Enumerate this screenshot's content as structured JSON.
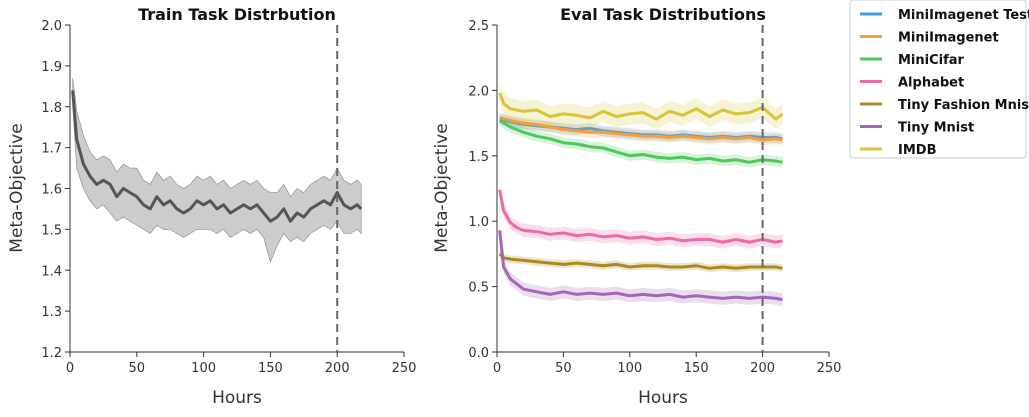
{
  "colors": {
    "train": "#555555",
    "minimagenet_test": "#4a9bd9",
    "minimagenet": "#f0a040",
    "minicifar": "#4fc85a",
    "alphabet": "#ee6aa7",
    "tiny_fashion_mnist": "#a88a1e",
    "tiny_mnist": "#a366b8",
    "imdb": "#d8c43a"
  },
  "chart_data": [
    {
      "type": "line",
      "title": "Train Task Distrbution",
      "xlabel": "Hours",
      "ylabel": "Meta-Objective",
      "xlim": [
        0,
        250
      ],
      "ylim": [
        1.2,
        2.0
      ],
      "xticks": [
        "0",
        "50",
        "100",
        "150",
        "200",
        "250"
      ],
      "yticks": [
        "1.2",
        "1.3",
        "1.4",
        "1.5",
        "1.6",
        "1.7",
        "1.8",
        "1.9",
        "2.0"
      ],
      "vline_x": 200,
      "grid": false,
      "series": [
        {
          "color_key": "train",
          "x": [
            2,
            5,
            10,
            15,
            20,
            25,
            30,
            35,
            40,
            45,
            50,
            55,
            60,
            65,
            70,
            75,
            80,
            85,
            90,
            95,
            100,
            105,
            110,
            115,
            120,
            125,
            130,
            135,
            140,
            145,
            150,
            155,
            160,
            165,
            170,
            175,
            180,
            185,
            190,
            195,
            200,
            205,
            210,
            215,
            218
          ],
          "y": [
            1.84,
            1.72,
            1.66,
            1.63,
            1.61,
            1.62,
            1.61,
            1.58,
            1.6,
            1.59,
            1.58,
            1.56,
            1.55,
            1.58,
            1.56,
            1.57,
            1.55,
            1.54,
            1.55,
            1.57,
            1.56,
            1.57,
            1.55,
            1.56,
            1.54,
            1.55,
            1.56,
            1.55,
            1.56,
            1.54,
            1.52,
            1.53,
            1.55,
            1.52,
            1.54,
            1.53,
            1.55,
            1.56,
            1.57,
            1.56,
            1.59,
            1.56,
            1.55,
            1.56,
            1.55
          ],
          "lower": [
            1.8,
            1.65,
            1.6,
            1.57,
            1.55,
            1.56,
            1.54,
            1.52,
            1.53,
            1.52,
            1.51,
            1.5,
            1.49,
            1.51,
            1.5,
            1.5,
            1.49,
            1.48,
            1.49,
            1.5,
            1.5,
            1.5,
            1.49,
            1.5,
            1.48,
            1.49,
            1.5,
            1.49,
            1.5,
            1.48,
            1.42,
            1.46,
            1.49,
            1.47,
            1.48,
            1.47,
            1.49,
            1.5,
            1.51,
            1.5,
            1.52,
            1.49,
            1.49,
            1.5,
            1.49
          ]
        }
      ],
      "band_upper": [
        1.87,
        1.79,
        1.73,
        1.69,
        1.67,
        1.68,
        1.67,
        1.64,
        1.66,
        1.65,
        1.65,
        1.62,
        1.61,
        1.64,
        1.62,
        1.63,
        1.61,
        1.6,
        1.61,
        1.63,
        1.62,
        1.63,
        1.61,
        1.62,
        1.6,
        1.61,
        1.62,
        1.61,
        1.62,
        1.6,
        1.59,
        1.59,
        1.61,
        1.58,
        1.6,
        1.59,
        1.61,
        1.62,
        1.63,
        1.62,
        1.65,
        1.62,
        1.61,
        1.62,
        1.61
      ]
    },
    {
      "type": "line",
      "title": "Eval Task Distributions",
      "xlabel": "Hours",
      "ylabel": "Meta-Objective",
      "xlim": [
        0,
        250
      ],
      "ylim": [
        0.0,
        2.5
      ],
      "xticks": [
        "0",
        "50",
        "100",
        "150",
        "200",
        "250"
      ],
      "yticks": [
        "0.0",
        "0.5",
        "1.0",
        "1.5",
        "2.0",
        "2.5"
      ],
      "vline_x": 200,
      "grid": false,
      "legend_position": "top-right",
      "series": [
        {
          "name": "MiniImagenet Test",
          "color_key": "minimagenet_test",
          "x": [
            2,
            10,
            20,
            30,
            40,
            50,
            60,
            70,
            80,
            90,
            100,
            110,
            120,
            130,
            140,
            150,
            160,
            170,
            180,
            190,
            200,
            210,
            215
          ],
          "y": [
            1.78,
            1.76,
            1.74,
            1.73,
            1.72,
            1.71,
            1.7,
            1.71,
            1.69,
            1.68,
            1.67,
            1.66,
            1.66,
            1.65,
            1.66,
            1.65,
            1.64,
            1.65,
            1.64,
            1.65,
            1.64,
            1.64,
            1.63
          ],
          "spread": 0.04
        },
        {
          "name": "MiniImagenet",
          "color_key": "minimagenet",
          "x": [
            2,
            10,
            20,
            30,
            40,
            50,
            60,
            70,
            80,
            90,
            100,
            110,
            120,
            130,
            140,
            150,
            160,
            170,
            180,
            190,
            200,
            210,
            215
          ],
          "y": [
            1.79,
            1.77,
            1.75,
            1.74,
            1.72,
            1.7,
            1.69,
            1.68,
            1.68,
            1.67,
            1.66,
            1.65,
            1.65,
            1.64,
            1.65,
            1.64,
            1.63,
            1.64,
            1.63,
            1.64,
            1.62,
            1.63,
            1.62
          ],
          "spread": 0.04
        },
        {
          "name": "MiniCifar",
          "color_key": "minicifar",
          "x": [
            2,
            10,
            20,
            30,
            40,
            50,
            60,
            70,
            80,
            90,
            100,
            110,
            120,
            130,
            140,
            150,
            160,
            170,
            180,
            190,
            200,
            210,
            215
          ],
          "y": [
            1.77,
            1.72,
            1.68,
            1.65,
            1.63,
            1.6,
            1.59,
            1.57,
            1.56,
            1.53,
            1.5,
            1.51,
            1.49,
            1.48,
            1.49,
            1.47,
            1.48,
            1.46,
            1.47,
            1.45,
            1.47,
            1.46,
            1.45
          ],
          "spread": 0.04
        },
        {
          "name": "Alphabet",
          "color_key": "alphabet",
          "x": [
            2,
            5,
            10,
            15,
            20,
            30,
            40,
            50,
            60,
            70,
            80,
            90,
            100,
            110,
            120,
            130,
            140,
            150,
            160,
            170,
            180,
            190,
            200,
            210,
            215
          ],
          "y": [
            1.24,
            1.08,
            0.99,
            0.95,
            0.93,
            0.92,
            0.9,
            0.91,
            0.89,
            0.9,
            0.88,
            0.89,
            0.87,
            0.88,
            0.86,
            0.87,
            0.85,
            0.86,
            0.86,
            0.84,
            0.86,
            0.84,
            0.86,
            0.84,
            0.85
          ],
          "spread": 0.05
        },
        {
          "name": "Tiny Fashion Mnist",
          "color_key": "tiny_fashion_mnist",
          "x": [
            2,
            5,
            10,
            20,
            30,
            40,
            50,
            60,
            70,
            80,
            90,
            100,
            110,
            120,
            130,
            140,
            150,
            160,
            170,
            180,
            190,
            200,
            210,
            215
          ],
          "y": [
            0.75,
            0.72,
            0.71,
            0.7,
            0.69,
            0.68,
            0.67,
            0.68,
            0.67,
            0.66,
            0.67,
            0.65,
            0.66,
            0.66,
            0.65,
            0.65,
            0.66,
            0.64,
            0.65,
            0.64,
            0.65,
            0.65,
            0.65,
            0.64
          ],
          "spread": 0.03
        },
        {
          "name": "Tiny Mnist",
          "color_key": "tiny_mnist",
          "x": [
            2,
            5,
            10,
            15,
            20,
            30,
            40,
            50,
            60,
            70,
            80,
            90,
            100,
            110,
            120,
            130,
            140,
            150,
            160,
            170,
            180,
            190,
            200,
            210,
            215
          ],
          "y": [
            0.93,
            0.65,
            0.56,
            0.52,
            0.48,
            0.46,
            0.44,
            0.46,
            0.44,
            0.45,
            0.44,
            0.45,
            0.43,
            0.44,
            0.43,
            0.44,
            0.42,
            0.43,
            0.42,
            0.41,
            0.42,
            0.41,
            0.42,
            0.41,
            0.4
          ],
          "spread": 0.05
        },
        {
          "name": "IMDB",
          "color_key": "imdb",
          "x": [
            2,
            5,
            10,
            20,
            30,
            40,
            50,
            60,
            70,
            80,
            90,
            100,
            110,
            120,
            130,
            140,
            150,
            160,
            170,
            180,
            190,
            200,
            210,
            215
          ],
          "y": [
            1.98,
            1.9,
            1.86,
            1.84,
            1.85,
            1.8,
            1.82,
            1.81,
            1.79,
            1.84,
            1.8,
            1.82,
            1.83,
            1.78,
            1.84,
            1.81,
            1.86,
            1.8,
            1.85,
            1.82,
            1.83,
            1.87,
            1.78,
            1.82
          ],
          "spread": 0.08
        }
      ]
    }
  ]
}
